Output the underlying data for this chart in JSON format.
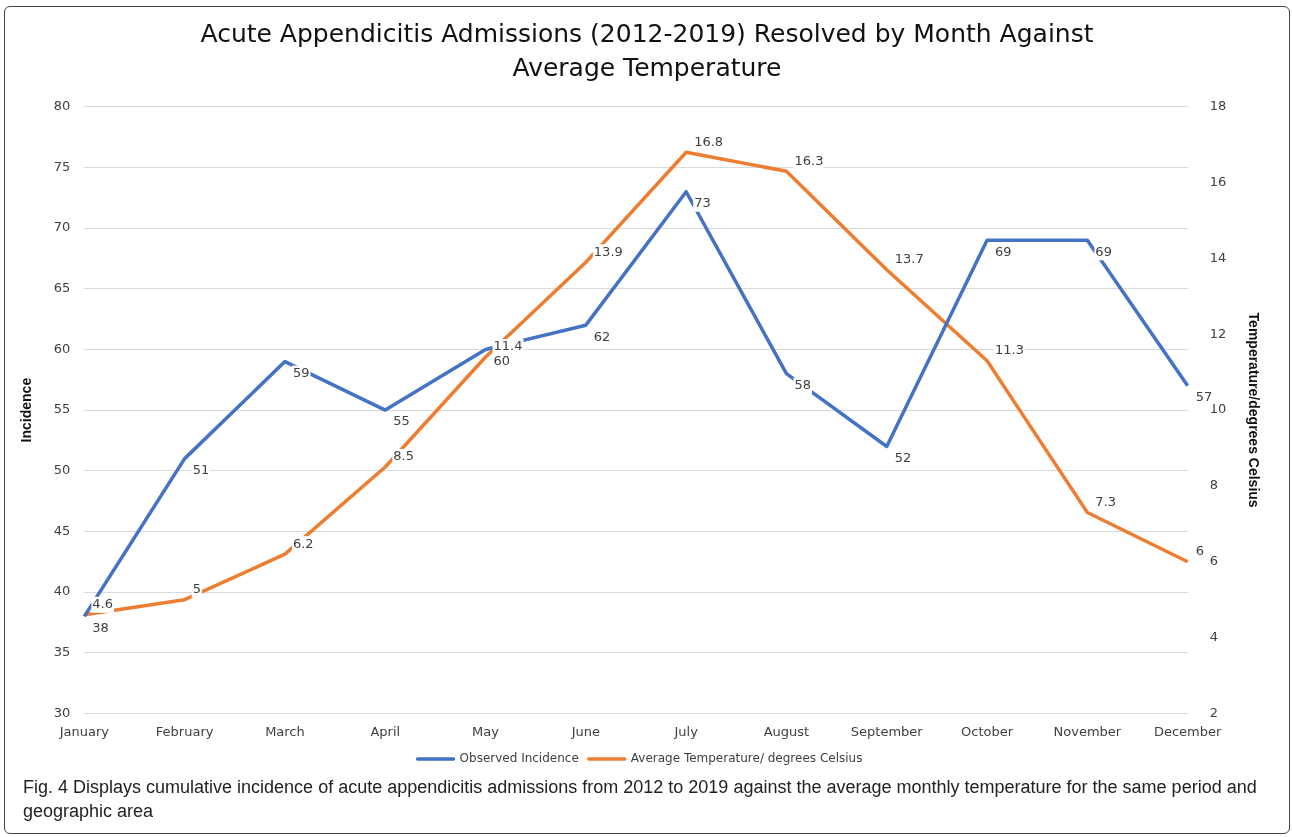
{
  "chart_data": {
    "type": "line",
    "title": "Acute Appendicitis  Admissions (2012-2019) Resolved by Month Against Average Temperature",
    "categories": [
      "January",
      "February",
      "March",
      "April",
      "May",
      "June",
      "July",
      "August",
      "September",
      "October",
      "November",
      "December"
    ],
    "series": [
      {
        "name": "Observed Incidence",
        "color": "#4472c4",
        "values": [
          38,
          51,
          59,
          55,
          60,
          62,
          73,
          58,
          52,
          69,
          69,
          57
        ]
      },
      {
        "name": "Average Temperature/ degrees Celsius",
        "color": "#ed7d31",
        "axis": "y2",
        "values": [
          4.6,
          5,
          6.2,
          8.5,
          11.4,
          13.9,
          16.8,
          16.3,
          13.7,
          11.3,
          7.3,
          6
        ]
      }
    ],
    "ylabel": "Incidence",
    "y2label": "Temperature/degrees Celsius",
    "ylim": [
      30,
      80
    ],
    "yticks": [
      30,
      35,
      40,
      45,
      50,
      55,
      60,
      65,
      70,
      75,
      80
    ],
    "y2lim": [
      2,
      18
    ],
    "y2ticks": [
      2,
      4,
      6,
      8,
      10,
      12,
      14,
      16,
      18
    ],
    "grid": "y",
    "legend": "bottom",
    "marker": "none",
    "line_style": "solid",
    "data_labels": true,
    "annotations": [
      "Fig. 4 Displays cumulative incidence of acute appendicitis admissions from 2012 to 2019 against the average monthly temperature for the same period and geographic area"
    ]
  }
}
